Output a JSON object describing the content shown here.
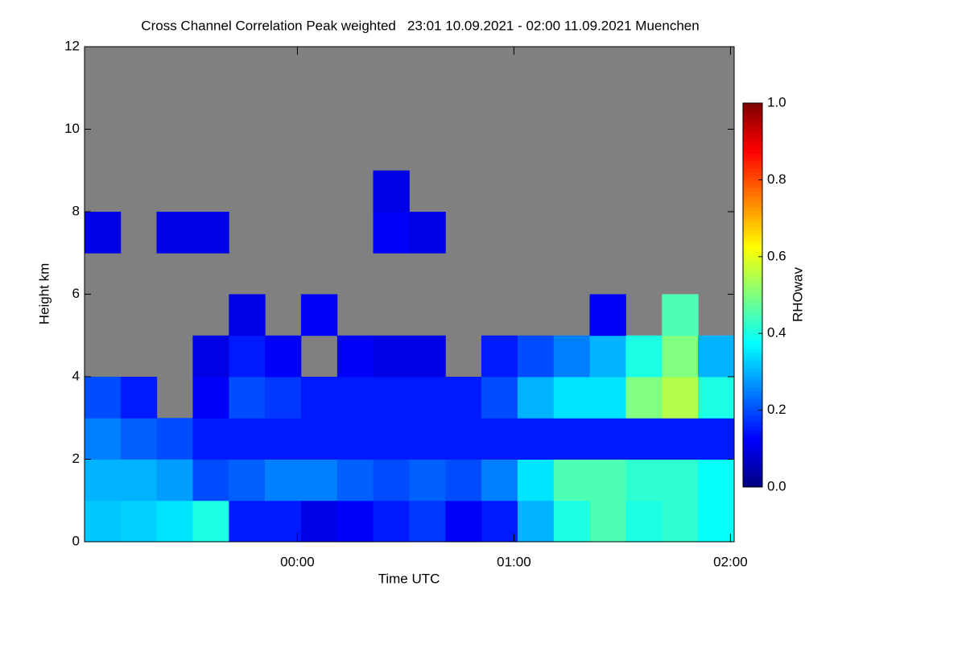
{
  "chart_data": {
    "type": "heatmap",
    "title": "Cross Channel Correlation Peak weighted   23:01 10.09.2021 - 02:00 11.09.2021 Muenchen",
    "x_label": "Time UTC",
    "y_label": "Height km",
    "colorbar_label": "RHOwav",
    "xlim": [
      -0.983,
      2.017
    ],
    "xticks": [
      {
        "value": 0,
        "label": "00:00"
      },
      {
        "value": 1,
        "label": "01:00"
      },
      {
        "value": 2,
        "label": "02:00"
      }
    ],
    "ylim": [
      0,
      12
    ],
    "yticks": [
      0,
      2,
      4,
      6,
      8,
      10,
      12
    ],
    "clim": [
      0,
      1
    ],
    "cticks": [
      {
        "value": 0,
        "label": "0.0"
      },
      {
        "value": 0.2,
        "label": "0.2"
      },
      {
        "value": 0.4,
        "label": "0.4"
      },
      {
        "value": 0.6,
        "label": "0.6"
      },
      {
        "value": 0.8,
        "label": "0.8"
      },
      {
        "value": 1,
        "label": "1.0"
      }
    ],
    "colormap": "jet",
    "background": "#808080",
    "x": [
      -0.9,
      -0.733,
      -0.567,
      -0.4,
      -0.233,
      -0.067,
      0.1,
      0.267,
      0.433,
      0.6,
      0.767,
      0.933,
      1.1,
      1.267,
      1.433,
      1.6,
      1.767,
      1.933
    ],
    "y": [
      0.5,
      1.5,
      2.5,
      3.5,
      4.5,
      5.5,
      6.5,
      7.5,
      8.5,
      9.5,
      10.5,
      11.5
    ],
    "z": [
      [
        0.32,
        0.33,
        0.35,
        0.4,
        0.15,
        0.15,
        0.1,
        0.12,
        0.15,
        0.18,
        0.12,
        0.15,
        0.3,
        0.4,
        0.45,
        0.4,
        0.42,
        0.38
      ],
      [
        0.3,
        0.3,
        0.28,
        0.2,
        0.22,
        0.25,
        0.25,
        0.22,
        0.2,
        0.22,
        0.2,
        0.25,
        0.35,
        0.45,
        0.45,
        0.42,
        0.42,
        0.38
      ],
      [
        0.25,
        0.22,
        0.2,
        0.15,
        0.15,
        0.15,
        0.15,
        0.15,
        0.15,
        0.15,
        0.15,
        0.15,
        0.15,
        0.15,
        0.15,
        0.15,
        0.15,
        0.15
      ],
      [
        0.2,
        0.15,
        null,
        0.12,
        0.2,
        0.18,
        0.15,
        0.15,
        0.15,
        0.15,
        0.15,
        0.2,
        0.3,
        0.35,
        0.35,
        0.5,
        0.55,
        0.4
      ],
      [
        null,
        null,
        null,
        0.1,
        0.15,
        0.12,
        null,
        0.12,
        0.1,
        0.1,
        null,
        0.15,
        0.2,
        0.25,
        0.3,
        0.4,
        0.5,
        0.3
      ],
      [
        null,
        null,
        null,
        null,
        0.1,
        null,
        0.12,
        null,
        null,
        null,
        null,
        null,
        null,
        null,
        0.12,
        null,
        0.45,
        null
      ],
      [
        null,
        null,
        null,
        null,
        null,
        null,
        null,
        null,
        null,
        null,
        null,
        null,
        null,
        null,
        null,
        null,
        null,
        null
      ],
      [
        0.1,
        null,
        0.1,
        0.1,
        null,
        null,
        null,
        null,
        0.12,
        0.1,
        null,
        null,
        null,
        null,
        null,
        null,
        null,
        null
      ],
      [
        null,
        null,
        null,
        null,
        null,
        null,
        null,
        null,
        0.1,
        null,
        null,
        null,
        null,
        null,
        null,
        null,
        null,
        null
      ],
      [
        null,
        null,
        null,
        null,
        null,
        null,
        null,
        null,
        null,
        null,
        null,
        null,
        null,
        null,
        null,
        null,
        null,
        null
      ],
      [
        null,
        null,
        null,
        null,
        null,
        null,
        null,
        null,
        null,
        null,
        null,
        null,
        null,
        null,
        null,
        null,
        null,
        null
      ],
      [
        null,
        null,
        null,
        null,
        null,
        null,
        null,
        null,
        null,
        null,
        null,
        null,
        null,
        null,
        null,
        null,
        null,
        null
      ]
    ]
  }
}
